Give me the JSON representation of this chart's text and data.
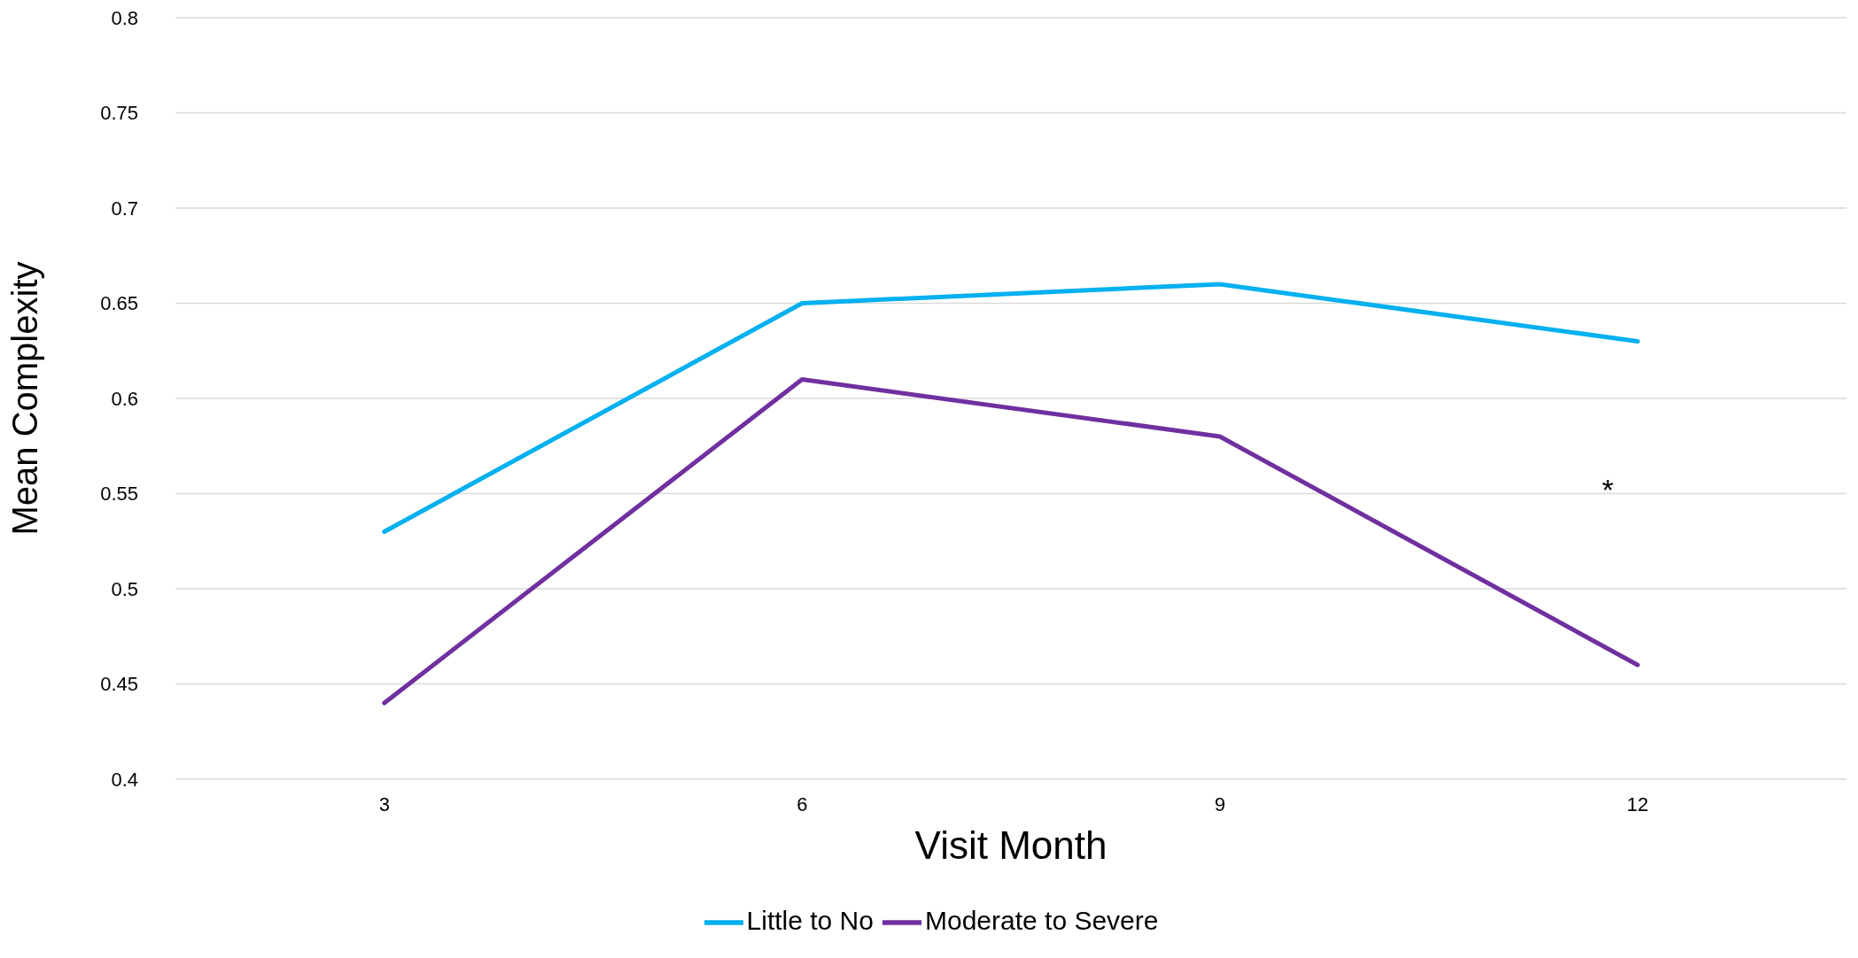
{
  "chart_data": {
    "type": "line",
    "xlabel": "Visit Month",
    "ylabel": "Mean  Complexity",
    "categories": [
      "3",
      "6",
      "9",
      "12"
    ],
    "series": [
      {
        "name": "Little to No",
        "color": "#00b0f0",
        "values": [
          0.53,
          0.65,
          0.66,
          0.63
        ]
      },
      {
        "name": "Moderate to Severe",
        "color": "#7030a0",
        "values": [
          0.44,
          0.61,
          0.58,
          0.46
        ]
      }
    ],
    "ylim": [
      0.4,
      0.8
    ],
    "yticks": [
      0.4,
      0.45,
      0.5,
      0.55,
      0.6,
      0.65,
      0.7,
      0.75,
      0.8
    ],
    "grid": "y",
    "legend": "bottom",
    "marker": "none",
    "line_style": "solid",
    "annotations": [
      "*"
    ]
  }
}
